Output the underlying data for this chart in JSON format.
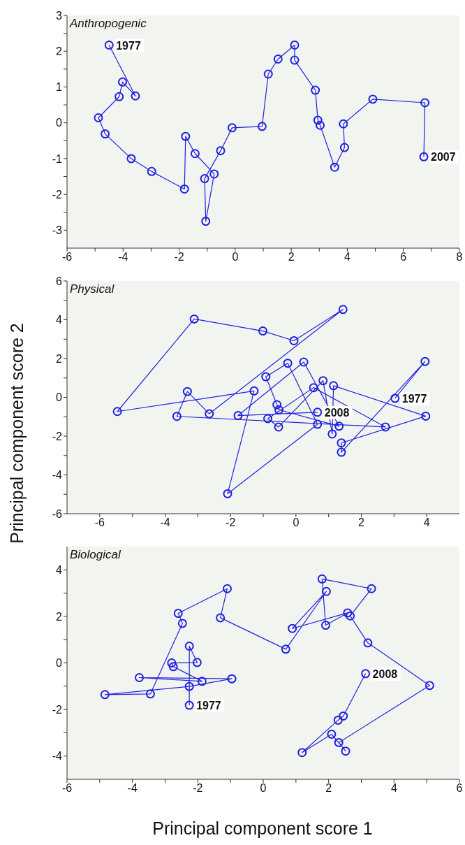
{
  "chart_data": [
    {
      "type": "line",
      "title": "Anthropogenic",
      "marker": "circle",
      "line_style": "solid",
      "color": "#2020e0",
      "x": [
        -4.5,
        -3.56,
        -4.02,
        -4.14,
        -4.88,
        -4.64,
        -3.71,
        -2.98,
        -1.81,
        -1.77,
        -1.43,
        -0.75,
        -1.05,
        -1.09,
        -0.52,
        -0.11,
        0.96,
        1.18,
        1.53,
        2.12,
        2.12,
        2.86,
        2.95,
        3.03,
        3.55,
        3.9,
        3.86,
        4.91,
        6.77,
        6.73
      ],
      "values": [
        2.17,
        0.75,
        1.14,
        0.73,
        0.14,
        -0.31,
        -1.0,
        -1.36,
        -1.85,
        -0.38,
        -0.86,
        -1.43,
        -2.75,
        -1.56,
        -0.78,
        -0.14,
        -0.1,
        1.36,
        1.78,
        2.17,
        1.75,
        0.91,
        0.07,
        -0.07,
        -1.24,
        -0.69,
        -0.03,
        0.66,
        0.56,
        -0.95
      ],
      "xlim": [
        -6,
        8
      ],
      "xticks": [
        -6,
        {
          "value": -5,
          "label": null
        },
        -4,
        {
          "value": -3,
          "label": null
        },
        -2,
        {
          "value": -1,
          "label": null
        },
        0,
        {
          "value": 1,
          "label": null
        },
        2,
        {
          "value": 3,
          "label": null
        },
        4,
        {
          "value": 5,
          "label": null
        },
        6,
        {
          "value": 7,
          "label": null
        },
        8
      ],
      "ylim": [
        -3.5,
        3
      ],
      "yticks": [
        -3,
        {
          "value": -2.5,
          "label": null
        },
        -2,
        {
          "value": -1.5,
          "label": null
        },
        -1,
        {
          "value": -0.5,
          "label": null
        },
        0,
        {
          "value": 0.5,
          "label": null
        },
        1,
        {
          "value": 1.5,
          "label": null
        },
        2,
        {
          "value": 2.5,
          "label": null
        },
        3
      ],
      "annotations": [
        {
          "text": "1977",
          "x": -4.5,
          "y": 2.17
        },
        {
          "text": "2007",
          "x": 6.73,
          "y": -0.95
        }
      ]
    },
    {
      "type": "line",
      "title": "Physical",
      "ylabel": "Principal component score 2",
      "marker": "circle",
      "line_style": "solid",
      "color": "#2020e0",
      "x": [
        3.03,
        3.95,
        1.39,
        1.39,
        3.97,
        1.15,
        1.11,
        0.83,
        -0.53,
        -0.86,
        0.54,
        2.74,
        -3.64,
        -3.32,
        -2.65,
        1.44,
        -0.06,
        -1.01,
        -3.11,
        -5.46,
        -1.28,
        -2.09,
        0.66,
        -0.25,
        -0.92,
        -0.58,
        -0.52,
        1.32,
        0.24,
        -1.77,
        0.66
      ],
      "values": [
        -0.05,
        1.85,
        -2.83,
        -2.35,
        -0.97,
        0.6,
        -1.89,
        0.86,
        -1.53,
        -1.1,
        0.5,
        -1.53,
        -0.98,
        0.3,
        -0.85,
        4.53,
        2.92,
        3.42,
        4.04,
        -0.73,
        0.33,
        -4.97,
        -1.39,
        1.76,
        1.06,
        -0.38,
        -0.64,
        -1.49,
        1.82,
        -0.94,
        -0.77
      ],
      "xlim": [
        -7,
        5
      ],
      "xticks": [
        -6,
        {
          "value": -5,
          "label": null
        },
        -4,
        {
          "value": -3,
          "label": null
        },
        -2,
        {
          "value": -1,
          "label": null
        },
        0,
        {
          "value": 1,
          "label": null
        },
        2,
        {
          "value": 3,
          "label": null
        },
        4
      ],
      "ylim": [
        -6,
        6
      ],
      "yticks": [
        -6,
        {
          "value": -5,
          "label": null
        },
        -4,
        {
          "value": -3,
          "label": null
        },
        -2,
        {
          "value": -1,
          "label": null
        },
        0,
        {
          "value": 1,
          "label": null
        },
        2,
        {
          "value": 3,
          "label": null
        },
        4,
        {
          "value": 5,
          "label": null
        },
        6
      ],
      "annotations": [
        {
          "text": "1977",
          "x": 3.03,
          "y": -0.05
        },
        {
          "text": "2008",
          "x": 0.66,
          "y": -0.77
        }
      ]
    },
    {
      "type": "line",
      "title": "Biological",
      "xlabel": "Principal component score 1",
      "marker": "circle",
      "line_style": "solid",
      "color": "#2020e0",
      "x": [
        -2.26,
        -2.26,
        -2.02,
        -2.8,
        -2.75,
        -1.87,
        -3.79,
        -0.96,
        -2.26,
        -4.84,
        -3.45,
        -2.47,
        -2.6,
        -1.1,
        -1.31,
        0.69,
        1.93,
        0.89,
        2.58,
        1.91,
        1.8,
        3.31,
        2.66,
        3.2,
        5.09,
        2.31,
        2.52,
        2.09,
        1.19,
        2.29,
        2.45,
        3.13
      ],
      "values": [
        -1.82,
        0.72,
        0.02,
        0.0,
        -0.16,
        -0.79,
        -0.63,
        -0.68,
        -1.01,
        -1.36,
        -1.33,
        1.7,
        2.13,
        3.19,
        1.94,
        0.59,
        3.07,
        1.48,
        2.15,
        1.62,
        3.61,
        3.19,
        2.02,
        0.86,
        -0.97,
        -3.42,
        -3.79,
        -3.06,
        -3.85,
        -2.46,
        -2.28,
        -0.46
      ],
      "xlim": [
        -6,
        6
      ],
      "xticks": [
        -6,
        {
          "value": -5,
          "label": null
        },
        -4,
        {
          "value": -3,
          "label": null
        },
        -2,
        {
          "value": -1,
          "label": null
        },
        0,
        {
          "value": 1,
          "label": null
        },
        2,
        {
          "value": 3,
          "label": null
        },
        4,
        {
          "value": 5,
          "label": null
        },
        6
      ],
      "ylim": [
        -5,
        5
      ],
      "yticks": [
        -4,
        {
          "value": -3,
          "label": null
        },
        -2,
        {
          "value": -1,
          "label": null
        },
        0,
        {
          "value": 1,
          "label": null
        },
        2,
        {
          "value": 3,
          "label": null
        },
        4
      ],
      "annotations": [
        {
          "text": "1977",
          "x": -2.26,
          "y": -1.82
        },
        {
          "text": "2008",
          "x": 3.13,
          "y": -0.46
        }
      ]
    }
  ]
}
